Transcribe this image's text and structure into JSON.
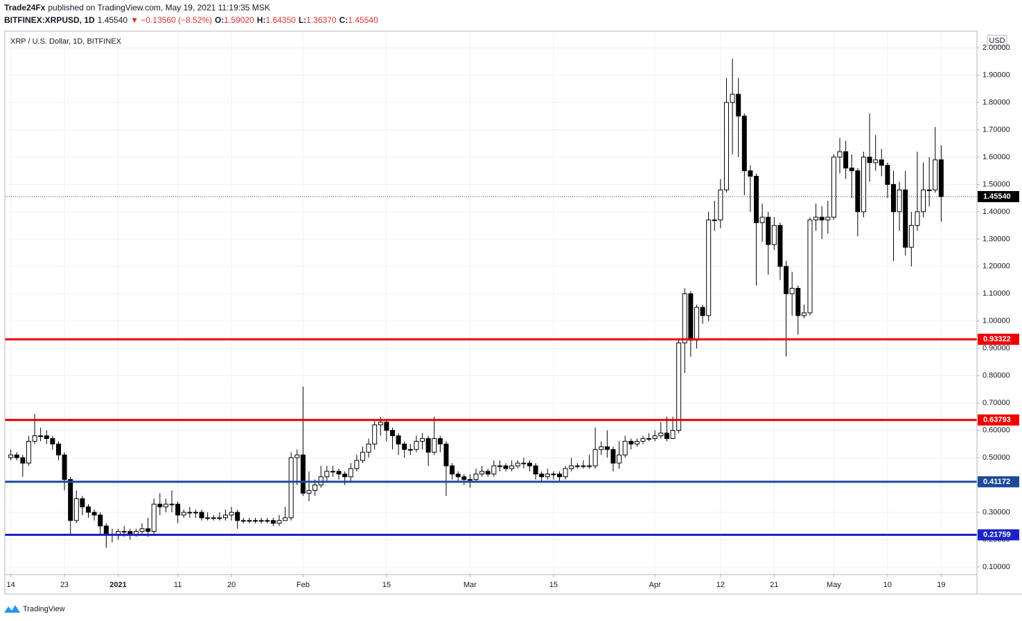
{
  "header": {
    "publisher": "Trade24Fx",
    "published": "published on TradingView.com, May 19, 2021 11:19:35 MSK",
    "symbol": "BITFINEX:XRPUSD, 1D",
    "last": "1.45540",
    "change": "▼ −0.13560 (−8.52%)",
    "o_key": "O:",
    "o": "1.59020",
    "h_key": "H:",
    "h": "1.64350",
    "l_key": "L:",
    "l": "1.36370",
    "c_key": "C:",
    "c": "1.45540"
  },
  "footer": {
    "brand": "TradingView"
  },
  "chart_data": {
    "type": "candlestick",
    "title": "XRP / U.S. Dollar, 1D, BITFINEX",
    "currency": "USD",
    "up_color": "#ffffff",
    "down_color": "#000000",
    "grid": true,
    "xlim": [
      "2020-12-13",
      "2021-05-25"
    ],
    "ylim": [
      0.072,
      2.061
    ],
    "xticks": [
      {
        "value": "2020-12-14",
        "label": "14"
      },
      {
        "value": "2020-12-23",
        "label": "23"
      },
      {
        "value": "2021-01-01",
        "label": "2021"
      },
      {
        "value": "2021-01-11",
        "label": "11"
      },
      {
        "value": "2021-01-20",
        "label": "20"
      },
      {
        "value": "2021-02-01",
        "label": "Feb"
      },
      {
        "value": "2021-02-15",
        "label": "15"
      },
      {
        "value": "2021-03-01",
        "label": "Mar"
      },
      {
        "value": "2021-03-15",
        "label": "15"
      },
      {
        "value": "2021-04-01",
        "label": "Apr"
      },
      {
        "value": "2021-04-12",
        "label": "12"
      },
      {
        "value": "2021-04-21",
        "label": "21"
      },
      {
        "value": "2021-05-01",
        "label": "May"
      },
      {
        "value": "2021-05-10",
        "label": "10"
      },
      {
        "value": "2021-05-19",
        "label": "19"
      }
    ],
    "yticks": [
      {
        "value": 0.1,
        "label": "0.10000"
      },
      {
        "value": 0.2,
        "label": "0.20000"
      },
      {
        "value": 0.3,
        "label": "0.30000"
      },
      {
        "value": 0.4,
        "label": "0.40000"
      },
      {
        "value": 0.5,
        "label": "0.50000"
      },
      {
        "value": 0.6,
        "label": "0.60000"
      },
      {
        "value": 0.7,
        "label": "0.70000"
      },
      {
        "value": 0.8,
        "label": "0.80000"
      },
      {
        "value": 0.9,
        "label": "0.90000"
      },
      {
        "value": 1.0,
        "label": "1.00000"
      },
      {
        "value": 1.1,
        "label": "1.10000"
      },
      {
        "value": 1.2,
        "label": "1.20000"
      },
      {
        "value": 1.3,
        "label": "1.30000"
      },
      {
        "value": 1.4,
        "label": "1.40000"
      },
      {
        "value": 1.5,
        "label": "1.50000"
      },
      {
        "value": 1.6,
        "label": "1.60000"
      },
      {
        "value": 1.7,
        "label": "1.70000"
      },
      {
        "value": 1.8,
        "label": "1.80000"
      },
      {
        "value": 1.9,
        "label": "1.90000"
      },
      {
        "value": 2.0,
        "label": "2.00000"
      }
    ],
    "hlines": [
      {
        "value": 0.93322,
        "label": "0.93322",
        "color": "#f00000"
      },
      {
        "value": 0.63793,
        "label": "0.63793",
        "color": "#f00000"
      },
      {
        "value": 0.41172,
        "label": "0.41172",
        "color": "#1e4a9a"
      },
      {
        "value": 0.21759,
        "label": "0.21759",
        "color": "#1a22c8"
      }
    ],
    "last_price": {
      "value": 1.4554,
      "label": "1.45540"
    },
    "x": [
      "2020-12-14",
      "2020-12-15",
      "2020-12-16",
      "2020-12-17",
      "2020-12-18",
      "2020-12-19",
      "2020-12-20",
      "2020-12-21",
      "2020-12-22",
      "2020-12-23",
      "2020-12-24",
      "2020-12-25",
      "2020-12-26",
      "2020-12-27",
      "2020-12-28",
      "2020-12-29",
      "2020-12-30",
      "2020-12-31",
      "2021-01-01",
      "2021-01-02",
      "2021-01-03",
      "2021-01-04",
      "2021-01-05",
      "2021-01-06",
      "2021-01-07",
      "2021-01-08",
      "2021-01-09",
      "2021-01-10",
      "2021-01-11",
      "2021-01-12",
      "2021-01-13",
      "2021-01-14",
      "2021-01-15",
      "2021-01-16",
      "2021-01-17",
      "2021-01-18",
      "2021-01-19",
      "2021-01-20",
      "2021-01-21",
      "2021-01-22",
      "2021-01-23",
      "2021-01-24",
      "2021-01-25",
      "2021-01-26",
      "2021-01-27",
      "2021-01-28",
      "2021-01-29",
      "2021-01-30",
      "2021-01-31",
      "2021-02-01",
      "2021-02-02",
      "2021-02-03",
      "2021-02-04",
      "2021-02-05",
      "2021-02-06",
      "2021-02-07",
      "2021-02-08",
      "2021-02-09",
      "2021-02-10",
      "2021-02-11",
      "2021-02-12",
      "2021-02-13",
      "2021-02-14",
      "2021-02-15",
      "2021-02-16",
      "2021-02-17",
      "2021-02-18",
      "2021-02-19",
      "2021-02-20",
      "2021-02-21",
      "2021-02-22",
      "2021-02-23",
      "2021-02-24",
      "2021-02-25",
      "2021-02-26",
      "2021-02-27",
      "2021-02-28",
      "2021-03-01",
      "2021-03-02",
      "2021-03-03",
      "2021-03-04",
      "2021-03-05",
      "2021-03-06",
      "2021-03-07",
      "2021-03-08",
      "2021-03-09",
      "2021-03-10",
      "2021-03-11",
      "2021-03-12",
      "2021-03-13",
      "2021-03-14",
      "2021-03-15",
      "2021-03-16",
      "2021-03-17",
      "2021-03-18",
      "2021-03-19",
      "2021-03-20",
      "2021-03-21",
      "2021-03-22",
      "2021-03-23",
      "2021-03-24",
      "2021-03-25",
      "2021-03-26",
      "2021-03-27",
      "2021-03-28",
      "2021-03-29",
      "2021-03-30",
      "2021-03-31",
      "2021-04-01",
      "2021-04-02",
      "2021-04-03",
      "2021-04-04",
      "2021-04-05",
      "2021-04-06",
      "2021-04-07",
      "2021-04-08",
      "2021-04-09",
      "2021-04-10",
      "2021-04-11",
      "2021-04-12",
      "2021-04-13",
      "2021-04-14",
      "2021-04-15",
      "2021-04-16",
      "2021-04-17",
      "2021-04-18",
      "2021-04-19",
      "2021-04-20",
      "2021-04-21",
      "2021-04-22",
      "2021-04-23",
      "2021-04-24",
      "2021-04-25",
      "2021-04-26",
      "2021-04-27",
      "2021-04-28",
      "2021-04-29",
      "2021-04-30",
      "2021-05-01",
      "2021-05-02",
      "2021-05-03",
      "2021-05-04",
      "2021-05-05",
      "2021-05-06",
      "2021-05-07",
      "2021-05-08",
      "2021-05-09",
      "2021-05-10",
      "2021-05-11",
      "2021-05-12",
      "2021-05-13",
      "2021-05-14",
      "2021-05-15",
      "2021-05-16",
      "2021-05-17",
      "2021-05-18",
      "2021-05-19"
    ],
    "open": [
      0.5,
      0.51,
      0.5,
      0.48,
      0.56,
      0.58,
      0.58,
      0.57,
      0.55,
      0.51,
      0.42,
      0.27,
      0.35,
      0.32,
      0.3,
      0.29,
      0.25,
      0.22,
      0.22,
      0.23,
      0.23,
      0.22,
      0.23,
      0.24,
      0.23,
      0.33,
      0.32,
      0.33,
      0.33,
      0.29,
      0.3,
      0.3,
      0.3,
      0.28,
      0.28,
      0.28,
      0.28,
      0.29,
      0.3,
      0.27,
      0.27,
      0.27,
      0.27,
      0.27,
      0.27,
      0.26,
      0.27,
      0.28,
      0.5,
      0.51,
      0.37,
      0.38,
      0.4,
      0.43,
      0.45,
      0.45,
      0.44,
      0.43,
      0.46,
      0.49,
      0.52,
      0.55,
      0.62,
      0.63,
      0.6,
      0.58,
      0.55,
      0.53,
      0.53,
      0.56,
      0.57,
      0.52,
      0.57,
      0.55,
      0.47,
      0.44,
      0.43,
      0.42,
      0.42,
      0.44,
      0.45,
      0.44,
      0.47,
      0.47,
      0.46,
      0.47,
      0.48,
      0.48,
      0.47,
      0.44,
      0.43,
      0.44,
      0.44,
      0.43,
      0.46,
      0.47,
      0.47,
      0.47,
      0.47,
      0.53,
      0.54,
      0.53,
      0.48,
      0.51,
      0.56,
      0.55,
      0.56,
      0.57,
      0.57,
      0.58,
      0.59,
      0.57,
      0.6,
      0.92,
      1.1,
      0.93,
      1.05,
      1.02,
      1.37,
      1.37,
      1.48,
      1.8,
      1.83,
      1.75,
      1.55,
      1.53,
      1.36,
      1.38,
      1.28,
      1.35,
      1.2,
      1.1,
      1.12,
      1.02,
      1.03,
      1.37,
      1.38,
      1.37,
      1.38,
      1.6,
      1.62,
      1.56,
      1.55,
      1.4,
      1.6,
      1.58,
      1.59,
      1.57,
      1.5,
      1.4,
      1.48,
      1.27,
      1.35,
      1.4,
      1.48,
      1.48,
      1.5902
    ],
    "high": [
      0.53,
      0.52,
      0.51,
      0.58,
      0.66,
      0.61,
      0.6,
      0.58,
      0.56,
      0.52,
      0.43,
      0.38,
      0.36,
      0.33,
      0.31,
      0.3,
      0.26,
      0.24,
      0.24,
      0.25,
      0.24,
      0.24,
      0.26,
      0.28,
      0.35,
      0.37,
      0.35,
      0.38,
      0.34,
      0.31,
      0.32,
      0.31,
      0.31,
      0.3,
      0.29,
      0.3,
      0.31,
      0.32,
      0.31,
      0.28,
      0.28,
      0.28,
      0.28,
      0.28,
      0.28,
      0.29,
      0.32,
      0.52,
      0.53,
      0.76,
      0.45,
      0.42,
      0.47,
      0.47,
      0.47,
      0.46,
      0.45,
      0.48,
      0.51,
      0.54,
      0.57,
      0.64,
      0.65,
      0.64,
      0.61,
      0.59,
      0.56,
      0.55,
      0.58,
      0.59,
      0.58,
      0.65,
      0.58,
      0.56,
      0.48,
      0.45,
      0.44,
      0.44,
      0.46,
      0.47,
      0.46,
      0.49,
      0.49,
      0.48,
      0.49,
      0.49,
      0.5,
      0.49,
      0.48,
      0.45,
      0.46,
      0.45,
      0.45,
      0.47,
      0.5,
      0.48,
      0.49,
      0.51,
      0.61,
      0.56,
      0.6,
      0.54,
      0.56,
      0.58,
      0.57,
      0.57,
      0.58,
      0.59,
      0.6,
      0.63,
      0.65,
      0.65,
      0.93,
      1.12,
      1.11,
      1.06,
      1.06,
      1.4,
      1.44,
      1.52,
      1.89,
      1.96,
      1.89,
      1.76,
      1.57,
      1.54,
      1.43,
      1.4,
      1.38,
      1.36,
      1.22,
      1.18,
      1.13,
      1.06,
      1.38,
      1.43,
      1.42,
      1.44,
      1.61,
      1.67,
      1.66,
      1.61,
      1.56,
      1.62,
      1.76,
      1.68,
      1.63,
      1.58,
      1.55,
      1.51,
      1.55,
      1.4,
      1.62,
      1.58,
      1.6,
      1.71,
      1.6435
    ],
    "low": [
      0.49,
      0.49,
      0.43,
      0.47,
      0.55,
      0.56,
      0.55,
      0.53,
      0.49,
      0.38,
      0.22,
      0.26,
      0.29,
      0.28,
      0.27,
      0.22,
      0.17,
      0.19,
      0.2,
      0.21,
      0.2,
      0.21,
      0.22,
      0.21,
      0.22,
      0.29,
      0.3,
      0.3,
      0.26,
      0.28,
      0.28,
      0.28,
      0.27,
      0.27,
      0.27,
      0.27,
      0.27,
      0.27,
      0.24,
      0.26,
      0.26,
      0.26,
      0.26,
      0.26,
      0.25,
      0.25,
      0.27,
      0.27,
      0.4,
      0.36,
      0.34,
      0.36,
      0.39,
      0.41,
      0.43,
      0.42,
      0.4,
      0.41,
      0.45,
      0.48,
      0.5,
      0.53,
      0.58,
      0.56,
      0.53,
      0.51,
      0.5,
      0.51,
      0.52,
      0.53,
      0.47,
      0.51,
      0.52,
      0.36,
      0.42,
      0.41,
      0.4,
      0.39,
      0.41,
      0.43,
      0.43,
      0.43,
      0.45,
      0.45,
      0.45,
      0.46,
      0.46,
      0.45,
      0.42,
      0.41,
      0.42,
      0.42,
      0.41,
      0.42,
      0.45,
      0.46,
      0.46,
      0.46,
      0.46,
      0.51,
      0.5,
      0.45,
      0.46,
      0.5,
      0.53,
      0.54,
      0.55,
      0.56,
      0.56,
      0.57,
      0.56,
      0.57,
      0.59,
      0.81,
      0.87,
      0.9,
      0.99,
      1.0,
      1.33,
      1.34,
      1.47,
      1.61,
      1.6,
      1.46,
      1.4,
      1.13,
      1.29,
      1.17,
      1.26,
      1.15,
      0.87,
      1.02,
      0.95,
      1.01,
      1.02,
      1.33,
      1.3,
      1.32,
      1.37,
      1.54,
      1.52,
      1.45,
      1.31,
      1.38,
      1.51,
      1.55,
      1.53,
      1.45,
      1.22,
      1.33,
      1.24,
      1.2,
      1.33,
      1.38,
      1.42,
      1.47,
      1.3637
    ],
    "close": [
      0.51,
      0.5,
      0.48,
      0.56,
      0.58,
      0.58,
      0.57,
      0.55,
      0.51,
      0.42,
      0.27,
      0.35,
      0.32,
      0.3,
      0.29,
      0.25,
      0.22,
      0.22,
      0.23,
      0.23,
      0.22,
      0.23,
      0.24,
      0.23,
      0.33,
      0.32,
      0.33,
      0.33,
      0.29,
      0.3,
      0.3,
      0.3,
      0.28,
      0.28,
      0.28,
      0.28,
      0.29,
      0.3,
      0.27,
      0.27,
      0.27,
      0.27,
      0.27,
      0.27,
      0.26,
      0.27,
      0.28,
      0.5,
      0.51,
      0.37,
      0.38,
      0.4,
      0.43,
      0.45,
      0.45,
      0.44,
      0.43,
      0.46,
      0.49,
      0.52,
      0.55,
      0.62,
      0.63,
      0.6,
      0.58,
      0.55,
      0.53,
      0.53,
      0.56,
      0.57,
      0.52,
      0.57,
      0.55,
      0.47,
      0.44,
      0.43,
      0.42,
      0.42,
      0.44,
      0.45,
      0.44,
      0.47,
      0.47,
      0.46,
      0.47,
      0.48,
      0.48,
      0.47,
      0.44,
      0.43,
      0.44,
      0.44,
      0.43,
      0.46,
      0.47,
      0.47,
      0.47,
      0.47,
      0.53,
      0.54,
      0.53,
      0.48,
      0.51,
      0.56,
      0.55,
      0.56,
      0.57,
      0.57,
      0.58,
      0.59,
      0.57,
      0.6,
      0.92,
      1.1,
      0.93,
      1.05,
      1.02,
      1.37,
      1.37,
      1.48,
      1.8,
      1.83,
      1.75,
      1.55,
      1.53,
      1.36,
      1.38,
      1.28,
      1.35,
      1.2,
      1.1,
      1.12,
      1.02,
      1.03,
      1.37,
      1.38,
      1.37,
      1.38,
      1.6,
      1.62,
      1.56,
      1.55,
      1.4,
      1.6,
      1.58,
      1.59,
      1.57,
      1.5,
      1.4,
      1.48,
      1.27,
      1.35,
      1.4,
      1.48,
      1.48,
      1.59,
      1.4554
    ]
  }
}
